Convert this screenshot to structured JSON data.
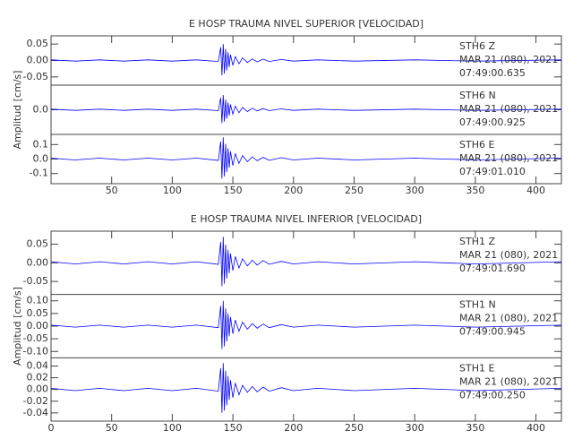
{
  "chart_data": [
    {
      "type": "line",
      "title": "E HOSP TRAUMA NIVEL SUPERIOR [VELOCIDAD]",
      "ylabel": "Amplitud [cm/s]",
      "color": "#0000ff",
      "xlim": [
        0,
        421
      ],
      "xticks": [
        50,
        100,
        150,
        200,
        250,
        300,
        350,
        400
      ],
      "x": [
        0,
        20,
        40,
        60,
        80,
        100,
        120,
        138,
        140,
        141,
        142,
        143,
        144,
        145,
        146,
        147,
        148,
        150,
        152,
        155,
        158,
        162,
        166,
        170,
        175,
        180,
        190,
        200,
        220,
        250,
        300,
        350,
        421
      ],
      "panels": [
        {
          "name": "STH6   Z",
          "date": "MAR 21 (080), 2021",
          "time": "07:49:00.635",
          "ylim": [
            -0.075,
            0.075
          ],
          "yticks": [
            {
              "value": 0.05,
              "label": "0.05"
            },
            {
              "value": 0,
              "label": "0.00"
            },
            {
              "value": -0.05,
              "label": "-0.05"
            }
          ],
          "values": [
            0.002,
            -0.002,
            0.002,
            -0.002,
            0.002,
            -0.002,
            0.002,
            -0.003,
            0.04,
            -0.045,
            0.05,
            -0.04,
            0.035,
            -0.03,
            0.025,
            -0.02,
            0.018,
            -0.015,
            0.012,
            -0.01,
            0.008,
            -0.006,
            0.005,
            -0.004,
            0.004,
            -0.003,
            0.003,
            -0.002,
            0.002,
            -0.002,
            0.002,
            -0.002,
            0.002
          ]
        },
        {
          "name": "STH6   N",
          "date": "MAR 21 (080), 2021",
          "time": "07:49:00.925",
          "ylim": [
            -0.25,
            0.25
          ],
          "yticks": [
            {
              "value": 0,
              "label": "0.0"
            }
          ],
          "values": [
            0.006,
            -0.006,
            0.006,
            -0.006,
            0.006,
            -0.006,
            0.006,
            -0.009,
            0.12,
            -0.135,
            0.15,
            -0.12,
            0.105,
            -0.09,
            0.075,
            -0.06,
            0.054,
            -0.045,
            0.036,
            -0.03,
            0.024,
            -0.018,
            0.015,
            -0.012,
            0.012,
            -0.009,
            0.009,
            -0.006,
            0.006,
            -0.006,
            0.006,
            -0.006,
            0.006
          ]
        },
        {
          "name": "STH6   E",
          "date": "MAR 21 (080), 2021",
          "time": "07:49:01.010",
          "ylim": [
            -0.17,
            0.17
          ],
          "yticks": [
            0.1,
            {
              "value": 0,
              "label": "0.0"
            },
            -0.1
          ],
          "values": [
            0.006,
            -0.006,
            0.006,
            -0.006,
            0.006,
            -0.006,
            0.006,
            -0.009,
            0.12,
            -0.135,
            0.15,
            -0.12,
            0.105,
            -0.09,
            0.075,
            -0.06,
            0.054,
            -0.045,
            0.036,
            -0.03,
            0.024,
            -0.018,
            0.015,
            -0.012,
            0.012,
            -0.009,
            0.009,
            -0.006,
            0.006,
            -0.006,
            0.006,
            -0.006,
            0.006
          ]
        }
      ]
    },
    {
      "type": "line",
      "title": "E HOSP TRAUMA NIVEL INFERIOR [VELOCIDAD]",
      "ylabel": "Amplitud [cm/s]",
      "color": "#0000ff",
      "xlim": [
        0,
        421
      ],
      "xticks": [
        0,
        50,
        100,
        150,
        200,
        250,
        300,
        350,
        400
      ],
      "x": [
        0,
        20,
        40,
        60,
        80,
        100,
        120,
        138,
        140,
        141,
        142,
        143,
        144,
        145,
        146,
        147,
        148,
        150,
        152,
        155,
        158,
        162,
        166,
        170,
        175,
        180,
        190,
        200,
        220,
        250,
        300,
        350,
        421
      ],
      "panels": [
        {
          "name": "STH1   Z",
          "date": "MAR 21 (080), 2021",
          "time": "07:49:01.690",
          "ylim": [
            -0.085,
            0.085
          ],
          "yticks": [
            {
              "value": 0.05,
              "label": "0.05"
            },
            {
              "value": 0,
              "label": "0.00"
            },
            {
              "value": -0.05,
              "label": "-0.05"
            }
          ],
          "values": [
            0.003,
            -0.003,
            0.003,
            -0.003,
            0.003,
            -0.003,
            0.003,
            -0.004,
            0.056,
            -0.063,
            0.07,
            -0.056,
            0.049,
            -0.042,
            0.035,
            -0.028,
            0.025,
            -0.021,
            0.017,
            -0.014,
            0.011,
            -0.008,
            0.007,
            -0.006,
            0.006,
            -0.004,
            0.004,
            -0.003,
            0.003,
            -0.003,
            0.003,
            -0.003,
            0.003
          ]
        },
        {
          "name": "STH1   N",
          "date": "MAR 21 (080), 2021",
          "time": "07:49:00.945",
          "ylim": [
            -0.125,
            0.125
          ],
          "yticks": [
            {
              "value": 0.1,
              "label": "0.10"
            },
            {
              "value": 0.05,
              "label": "0.05"
            },
            {
              "value": 0,
              "label": "0.00"
            },
            {
              "value": -0.05,
              "label": "-0.05"
            },
            {
              "value": -0.1,
              "label": "-0.10"
            }
          ],
          "values": [
            0.004,
            -0.004,
            0.004,
            -0.004,
            0.004,
            -0.004,
            0.004,
            -0.006,
            0.08,
            -0.09,
            0.1,
            -0.08,
            0.07,
            -0.06,
            0.05,
            -0.04,
            0.036,
            -0.03,
            0.024,
            -0.02,
            0.016,
            -0.012,
            0.01,
            -0.008,
            0.008,
            -0.006,
            0.006,
            -0.004,
            0.004,
            -0.004,
            0.004,
            -0.004,
            0.004
          ]
        },
        {
          "name": "STH1   E",
          "date": "MAR 21 (080), 2021",
          "time": "07:49:00.250",
          "ylim": [
            -0.054,
            0.054
          ],
          "yticks": [
            0.04,
            0.02,
            {
              "value": 0,
              "label": "0.00"
            },
            -0.02,
            -0.04
          ],
          "values": [
            0.002,
            -0.002,
            0.002,
            -0.002,
            0.002,
            -0.002,
            0.002,
            -0.003,
            0.036,
            -0.04,
            0.045,
            -0.036,
            0.032,
            -0.027,
            0.023,
            -0.018,
            0.016,
            -0.014,
            0.011,
            -0.009,
            0.007,
            -0.005,
            0.005,
            -0.004,
            0.004,
            -0.003,
            0.003,
            -0.002,
            0.002,
            -0.002,
            0.002,
            -0.002,
            0.002
          ]
        }
      ]
    }
  ]
}
